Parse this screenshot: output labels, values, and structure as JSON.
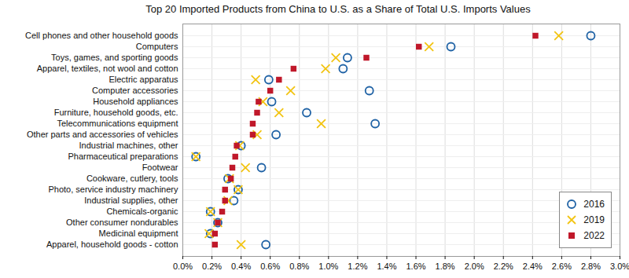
{
  "chart_data": {
    "type": "scatter",
    "orientation": "horizontal",
    "title": "Top 20 Imported Products from China to U.S. as a Share of Total U.S. Imports Values",
    "categories": [
      "Cell phones and other household goods",
      "Computers",
      "Toys, games, and sporting goods",
      "Apparel, textiles, not wool and cotton",
      "Electric apparatus",
      "Computer accessories",
      "Household appliances",
      "Furniture, household goods, etc.",
      "Telecommunications equipment",
      "Other parts and accessories of vehicles",
      "Industrial machines, other",
      "Pharmaceutical preparations",
      "Footwear",
      "Cookware, cutlery, tools",
      "Photo, service industry machinery",
      "Industrial supplies, other",
      "Chemicals-organic",
      "Other consumer nondurables",
      "Medicinal equipment",
      "Apparel, household goods - cotton"
    ],
    "series": [
      {
        "name": "2016",
        "color": "#1f62a5",
        "marker": "circle",
        "values": [
          2.8,
          1.84,
          1.13,
          1.1,
          0.59,
          1.28,
          0.61,
          0.85,
          1.32,
          0.64,
          0.4,
          0.09,
          0.54,
          0.31,
          0.38,
          0.35,
          0.19,
          0.24,
          0.19,
          0.57
        ]
      },
      {
        "name": "2019",
        "color": "#f2c413",
        "marker": "x",
        "values": [
          2.58,
          1.69,
          1.05,
          0.98,
          0.5,
          0.74,
          0.55,
          0.66,
          0.95,
          0.51,
          0.39,
          0.09,
          0.43,
          0.32,
          0.38,
          0.31,
          0.19,
          0.24,
          0.18,
          0.4
        ]
      },
      {
        "name": "2022",
        "color": "#c0182a",
        "marker": "square",
        "values": [
          2.42,
          1.62,
          1.26,
          0.76,
          0.66,
          0.6,
          0.52,
          0.51,
          0.48,
          0.48,
          0.37,
          0.36,
          0.34,
          0.33,
          0.29,
          0.29,
          0.27,
          0.24,
          0.22,
          0.22
        ]
      }
    ],
    "xlim": [
      0,
      3.0
    ],
    "xticks": [
      {
        "value": 0,
        "label": "0.0%"
      },
      {
        "value": 0.2,
        "label": "0.2%"
      },
      {
        "value": 0.4,
        "label": "0.4%"
      },
      {
        "value": 0.6,
        "label": "0.6%"
      },
      {
        "value": 0.8,
        "label": "0.8%"
      },
      {
        "value": 1.0,
        "label": "1.0%"
      },
      {
        "value": 1.2,
        "label": "1.2%"
      },
      {
        "value": 1.4,
        "label": "1.4%"
      },
      {
        "value": 1.6,
        "label": "1.6%"
      },
      {
        "value": 1.8,
        "label": "1.8%"
      },
      {
        "value": 2.0,
        "label": "2.0%"
      },
      {
        "value": 2.2,
        "label": "2.2%"
      },
      {
        "value": 2.4,
        "label": "2.4%"
      },
      {
        "value": 2.6,
        "label": "2.6%"
      },
      {
        "value": 2.8,
        "label": "2.8%"
      },
      {
        "value": 3.0,
        "label": "3.0%"
      }
    ],
    "grid": true,
    "legend": "bottom-right"
  }
}
